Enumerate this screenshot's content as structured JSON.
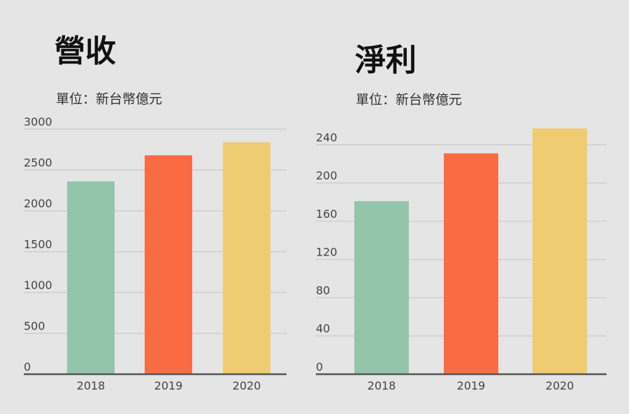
{
  "charts": [
    {
      "title": "營收",
      "unit_label": "單位：新台幣億元"
    },
    {
      "title": "淨利",
      "unit_label": "單位：新台幣億元"
    }
  ],
  "colors": {
    "background": "#e5e5e5",
    "gridline": "#c9c9c9",
    "axis": "#555555",
    "bar_2018": "#93c5aa",
    "bar_2019": "#f96c43",
    "bar_2020": "#efcc72",
    "tick_text": "#444444"
  },
  "chart_data": [
    {
      "type": "bar",
      "title": "營收",
      "subtitle": "單位：新台幣億元",
      "categories": [
        "2018",
        "2019",
        "2020"
      ],
      "values": [
        2360,
        2680,
        2840
      ],
      "ylim": [
        0,
        3000
      ],
      "yticks": [
        0,
        500,
        1000,
        1500,
        2000,
        2500,
        3000
      ],
      "xlabel": "",
      "ylabel": "",
      "grid": true,
      "legend": "none"
    },
    {
      "type": "bar",
      "title": "淨利",
      "subtitle": "單位：新台幣億元",
      "categories": [
        "2018",
        "2019",
        "2020"
      ],
      "values": [
        181,
        231,
        257
      ],
      "ylim": [
        0,
        260
      ],
      "yticks": [
        0,
        40,
        80,
        120,
        160,
        200,
        240
      ],
      "xlabel": "",
      "ylabel": "",
      "grid": true,
      "legend": "none"
    }
  ]
}
